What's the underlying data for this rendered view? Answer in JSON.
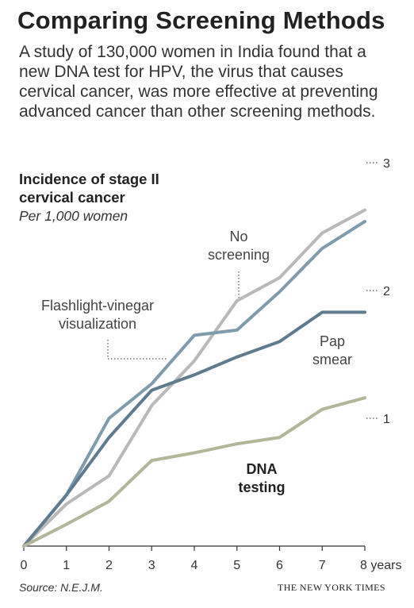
{
  "header": {
    "title": "Comparing Screening Methods",
    "subtitle": "A study of 130,000 women in India found that a new DNA test for HPV, the virus that causes cervical cancer, was more effective at preventing advanced cancer than other screening methods."
  },
  "footer": {
    "source": "Source: N.E.J.M.",
    "credit": "THE NEW YORK TIMES"
  },
  "chart_data": {
    "type": "line",
    "ylabel": "Incidence of stage II cervical cancer",
    "yunit": "Per 1,000 women",
    "x": [
      0,
      1,
      2,
      3,
      4,
      5,
      6,
      7,
      8
    ],
    "x_tick_labels": [
      "0",
      "1",
      "2",
      "3",
      "4",
      "5",
      "6",
      "7",
      "8 years"
    ],
    "y_ticks": [
      1,
      2,
      3
    ],
    "y_tick_labels": [
      "1",
      "2",
      "3"
    ],
    "xlim": [
      0,
      8
    ],
    "ylim": [
      0,
      3
    ],
    "grid": false,
    "series": [
      {
        "name": "No screening",
        "label_lines": [
          "No",
          "screening"
        ],
        "color": "#b9b9b9",
        "values": [
          0,
          0.33,
          0.55,
          1.1,
          1.45,
          1.92,
          2.1,
          2.45,
          2.63
        ]
      },
      {
        "name": "Flashlight-vinegar visualization",
        "label_lines": [
          "Flashlight-vinegar",
          "visualization"
        ],
        "color": "#7f9cad",
        "values": [
          0,
          0.4,
          1.0,
          1.27,
          1.65,
          1.69,
          1.99,
          2.33,
          2.54
        ]
      },
      {
        "name": "Pap smear",
        "label_lines": [
          "Pap",
          "smear"
        ],
        "color": "#5e7b8f",
        "values": [
          0,
          0.4,
          0.85,
          1.22,
          1.34,
          1.48,
          1.6,
          1.83,
          1.83
        ]
      },
      {
        "name": "DNA testing",
        "label_lines": [
          "DNA",
          "testing"
        ],
        "color": "#b3b698",
        "values": [
          0,
          0.17,
          0.35,
          0.67,
          0.73,
          0.8,
          0.85,
          1.07,
          1.16
        ]
      }
    ]
  }
}
